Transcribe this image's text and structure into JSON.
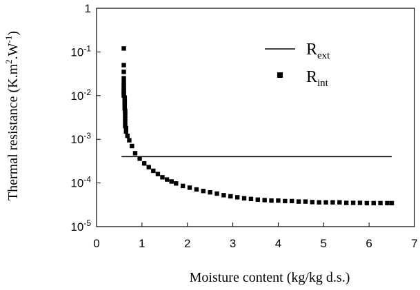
{
  "chart_data": {
    "type": "scatter",
    "xlabel": "Moisture content (kg/kg d.s.)",
    "ylabel": {
      "main": "Thermal resistance (K.m",
      "sup1": "2",
      "mid": ".W",
      "sup2": "-1",
      "end": ")"
    },
    "x_scale": "linear",
    "y_scale": "log",
    "xlim": [
      0,
      7
    ],
    "ylim": [
      1e-05,
      1
    ],
    "x_ticks": [
      "0",
      "1",
      "2",
      "3",
      "4",
      "5",
      "6",
      "7"
    ],
    "y_ticks": [
      {
        "base": "1",
        "exp": ""
      },
      {
        "base": "10",
        "exp": "-1"
      },
      {
        "base": "10",
        "exp": "-2"
      },
      {
        "base": "10",
        "exp": "-3"
      },
      {
        "base": "10",
        "exp": "-4"
      },
      {
        "base": "10",
        "exp": "-5"
      }
    ],
    "legend": {
      "placement": "top-right",
      "entries": [
        {
          "base": "R",
          "sub": "ext",
          "style": "line"
        },
        {
          "base": "R",
          "sub": "int",
          "style": "square-markers"
        }
      ]
    },
    "series": [
      {
        "name": "Rext",
        "style": "line",
        "color": "#000000",
        "x": [
          0.55,
          6.5
        ],
        "y": [
          0.0004,
          0.0004
        ]
      },
      {
        "name": "Rint",
        "style": "square-markers",
        "color": "#000000",
        "x": [
          0.6,
          0.6,
          0.6,
          0.6,
          0.6,
          0.6,
          0.6,
          0.6,
          0.6,
          0.6,
          0.6,
          0.62,
          0.62,
          0.62,
          0.62,
          0.62,
          0.62,
          0.62,
          0.62,
          0.63,
          0.63,
          0.63,
          0.63,
          0.63,
          0.63,
          0.65,
          0.65,
          0.68,
          0.72,
          0.78,
          0.85,
          0.95,
          1.05,
          1.15,
          1.25,
          1.35,
          1.45,
          1.55,
          1.65,
          1.75,
          1.9,
          2.05,
          2.2,
          2.35,
          2.5,
          2.65,
          2.8,
          2.95,
          3.1,
          3.25,
          3.4,
          3.55,
          3.7,
          3.85,
          4.0,
          4.15,
          4.3,
          4.45,
          4.6,
          4.75,
          4.9,
          5.05,
          5.2,
          5.35,
          5.5,
          5.65,
          5.8,
          5.95,
          6.1,
          6.25,
          6.4,
          6.5
        ],
        "y": [
          0.12,
          0.05,
          0.035,
          0.025,
          0.02,
          0.017,
          0.015,
          0.013,
          0.012,
          0.011,
          0.01,
          0.009,
          0.008,
          0.0075,
          0.007,
          0.0065,
          0.006,
          0.0055,
          0.005,
          0.0045,
          0.004,
          0.0035,
          0.003,
          0.0025,
          0.002,
          0.0018,
          0.0015,
          0.0012,
          0.00095,
          0.0007,
          0.00048,
          0.00036,
          0.00028,
          0.00023,
          0.00019,
          0.00016,
          0.000135,
          0.00012,
          0.000108,
          9.75e-05,
          8.55e-05,
          7.8e-05,
          7.1e-05,
          6.55e-05,
          6.1e-05,
          5.7e-05,
          5.25e-05,
          4.95e-05,
          4.7e-05,
          4.45e-05,
          4.3e-05,
          4.15e-05,
          4.05e-05,
          3.95e-05,
          3.95e-05,
          3.85e-05,
          3.85e-05,
          3.75e-05,
          3.75e-05,
          3.65e-05,
          3.6e-05,
          3.6e-05,
          3.6e-05,
          3.6e-05,
          3.5e-05,
          3.5e-05,
          3.5e-05,
          3.45e-05,
          3.45e-05,
          3.45e-05,
          3.45e-05,
          3.45e-05
        ]
      }
    ]
  }
}
